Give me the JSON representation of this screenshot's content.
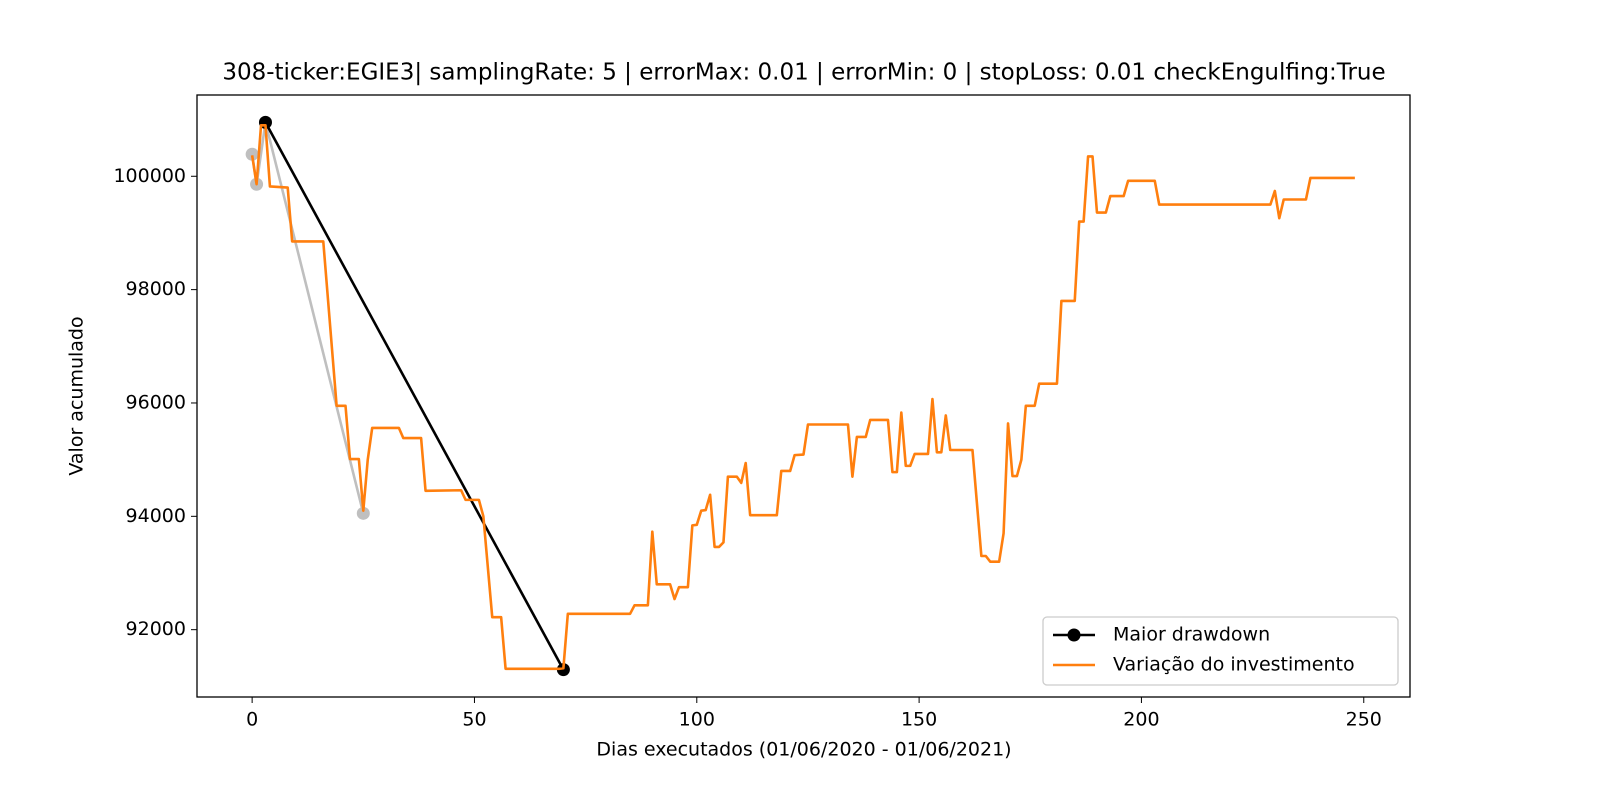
{
  "chart_data": {
    "type": "line",
    "title": "308-ticker:EGIE3| samplingRate: 5 | errorMax: 0.01 | errorMin: 0 | stopLoss: 0.01 checkEngulfing:True",
    "xlabel": "Dias executados (01/06/2020 - 01/06/2021)",
    "ylabel": "Valor acumulado",
    "xlim": [
      -12.4,
      260.4
    ],
    "ylim": [
      90812,
      101434
    ],
    "xticks": [
      0,
      50,
      100,
      150,
      200,
      250
    ],
    "yticks": [
      92000,
      94000,
      96000,
      98000,
      100000
    ],
    "grid": false,
    "legend": "lower right",
    "series": [
      {
        "color": "#bfbfbf",
        "marker": true,
        "x": [
          0,
          1,
          3,
          25
        ],
        "values": [
          100388,
          99859,
          100951,
          94053
        ]
      },
      {
        "name": "Maior drawdown",
        "color": "#000000",
        "marker": true,
        "x": [
          3,
          70
        ],
        "values": [
          100951,
          91295
        ]
      },
      {
        "name": "Variação do investimento",
        "color": "#ff7f0e",
        "marker": false,
        "x": [
          0,
          1,
          2,
          3,
          4,
          8,
          9,
          16,
          19,
          21,
          22,
          24,
          25,
          26,
          27,
          33,
          34,
          38,
          39,
          47,
          48,
          51,
          52,
          54,
          56,
          57,
          69,
          70,
          71,
          85,
          86,
          89,
          90,
          91,
          94,
          95,
          96,
          98,
          99,
          100,
          101,
          102,
          103,
          104,
          105,
          106,
          107,
          109,
          110,
          111,
          112,
          118,
          119,
          121,
          122,
          124,
          125,
          134,
          135,
          136,
          138,
          139,
          143,
          144,
          145,
          146,
          147,
          148,
          149,
          152,
          153,
          154,
          155,
          156,
          157,
          162,
          164,
          165,
          166,
          168,
          169,
          170,
          171,
          172,
          173,
          174,
          176,
          177,
          181,
          182,
          185,
          186,
          187,
          188,
          189,
          190,
          192,
          193,
          196,
          197,
          203,
          204,
          229,
          230,
          231,
          232,
          237,
          238,
          248
        ],
        "values": [
          100370,
          99860,
          100900,
          100900,
          99820,
          99800,
          98850,
          98850,
          95950,
          95950,
          95010,
          95010,
          94100,
          95000,
          95560,
          95560,
          95380,
          95380,
          94450,
          94460,
          94290,
          94290,
          94000,
          92220,
          92220,
          91310,
          91310,
          91320,
          92280,
          92280,
          92430,
          92430,
          93730,
          92800,
          92800,
          92540,
          92750,
          92750,
          93840,
          93850,
          94100,
          94110,
          94380,
          93460,
          93460,
          93540,
          94700,
          94700,
          94590,
          94940,
          94020,
          94020,
          94800,
          94800,
          95080,
          95090,
          95620,
          95620,
          94700,
          95400,
          95400,
          95700,
          95700,
          94780,
          94780,
          95830,
          94890,
          94890,
          95100,
          95100,
          96070,
          95130,
          95130,
          95780,
          95170,
          95170,
          93300,
          93300,
          93200,
          93200,
          93700,
          95640,
          94710,
          94710,
          95000,
          95950,
          95950,
          96340,
          96340,
          97800,
          97800,
          99200,
          99200,
          100350,
          100350,
          99360,
          99360,
          99650,
          99650,
          99920,
          99920,
          99500,
          99500,
          99740,
          99260,
          99590,
          99590,
          99970,
          99970
        ]
      }
    ]
  }
}
